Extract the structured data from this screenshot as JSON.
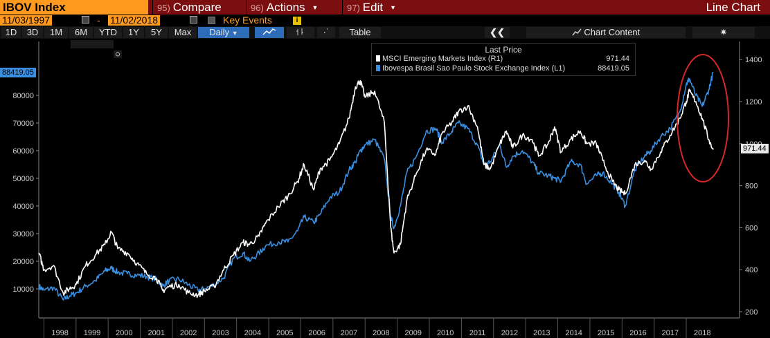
{
  "menu": {
    "ticker": "IBOV Index",
    "compare": {
      "num": "95)",
      "label": "Compare"
    },
    "actions": {
      "num": "96)",
      "label": "Actions"
    },
    "edit": {
      "num": "97)",
      "label": "Edit"
    },
    "chart_type": "Line Chart"
  },
  "dates": {
    "start": "11/03/1997",
    "end": "11/02/2018",
    "separator": "-",
    "key_events": "Key Events",
    "info": "i"
  },
  "toolbar": {
    "ranges": [
      "1D",
      "3D",
      "1M",
      "6M",
      "YTD",
      "1Y",
      "5Y",
      "Max"
    ],
    "frequency": "Daily",
    "table": "Table",
    "chart_content": "Chart Content"
  },
  "colors": {
    "accent": "#ff9a1e",
    "header": "#7b0e0e",
    "ibov": "#3a8fe0",
    "msci": "#ffffff",
    "highlight": "#d62828"
  },
  "chart_data": {
    "type": "line",
    "legend": {
      "header": "Last Price",
      "position": "top-center"
    },
    "x_ticks": [
      "1998",
      "1999",
      "2000",
      "2001",
      "2002",
      "2003",
      "2004",
      "2005",
      "2006",
      "2007",
      "2008",
      "2009",
      "2010",
      "2011",
      "2012",
      "2013",
      "2014",
      "2015",
      "2016",
      "2017",
      "2018"
    ],
    "left_axis": {
      "ticks": [
        10000,
        20000,
        30000,
        40000,
        50000,
        60000,
        70000,
        80000
      ],
      "range": [
        0,
        100000
      ]
    },
    "right_axis": {
      "ticks": [
        200,
        400,
        600,
        800,
        1000,
        1200,
        1400
      ],
      "range": [
        200,
        1450
      ]
    },
    "grid": false,
    "series": [
      {
        "name": "MSCI Emerging Markets Index (R1)",
        "last": "971.44",
        "axis": "right",
        "color": "#ffffff",
        "x": [
          1997.84,
          1998.0,
          1998.3,
          1998.6,
          1998.8,
          1999.0,
          1999.3,
          1999.6,
          1999.9,
          2000.1,
          2000.3,
          2000.6,
          2000.9,
          2001.2,
          2001.5,
          2001.7,
          2001.9,
          2002.2,
          2002.5,
          2002.8,
          2003.0,
          2003.3,
          2003.6,
          2003.9,
          2004.2,
          2004.4,
          2004.7,
          2004.9,
          2005.3,
          2005.6,
          2005.9,
          2006.1,
          2006.4,
          2006.6,
          2006.9,
          2007.2,
          2007.5,
          2007.7,
          2007.85,
          2008.0,
          2008.3,
          2008.6,
          2008.8,
          2008.9,
          2009.1,
          2009.3,
          2009.6,
          2009.9,
          2010.2,
          2010.4,
          2010.7,
          2010.9,
          2011.2,
          2011.5,
          2011.7,
          2011.9,
          2012.2,
          2012.4,
          2012.6,
          2012.9,
          2013.2,
          2013.4,
          2013.7,
          2013.9,
          2014.1,
          2014.4,
          2014.7,
          2014.9,
          2015.2,
          2015.4,
          2015.7,
          2015.9,
          2016.1,
          2016.4,
          2016.7,
          2016.9,
          2017.2,
          2017.5,
          2017.8,
          2018.0,
          2018.1,
          2018.3,
          2018.5,
          2018.7,
          2018.84
        ],
        "y": [
          480,
          400,
          420,
          290,
          310,
          330,
          420,
          470,
          520,
          580,
          500,
          480,
          430,
          380,
          360,
          300,
          320,
          330,
          290,
          280,
          300,
          320,
          400,
          470,
          530,
          520,
          560,
          620,
          700,
          750,
          820,
          900,
          780,
          880,
          920,
          1000,
          1120,
          1270,
          1300,
          1220,
          1250,
          1100,
          600,
          480,
          520,
          730,
          860,
          970,
          950,
          1050,
          1100,
          1150,
          1180,
          1080,
          900,
          880,
          1000,
          1060,
          980,
          1040,
          1020,
          940,
          1000,
          1080,
          960,
          1020,
          1060,
          1000,
          1000,
          920,
          820,
          780,
          760,
          900,
          920,
          880,
          960,
          1040,
          1120,
          1200,
          1250,
          1200,
          1120,
          1020,
          971.44
        ]
      },
      {
        "name": "Ibovespa Brasil Sao Paulo Stock Exchange Index (L1)",
        "last": "88419.05",
        "axis": "left",
        "color": "#3a8fe0",
        "x": [
          1997.84,
          1998.0,
          1998.3,
          1998.6,
          1998.8,
          1999.0,
          1999.3,
          1999.6,
          1999.9,
          2000.1,
          2000.3,
          2000.6,
          2000.9,
          2001.2,
          2001.5,
          2001.7,
          2001.9,
          2002.2,
          2002.5,
          2002.8,
          2003.0,
          2003.3,
          2003.6,
          2003.9,
          2004.2,
          2004.4,
          2004.7,
          2004.9,
          2005.3,
          2005.6,
          2005.9,
          2006.1,
          2006.4,
          2006.6,
          2006.9,
          2007.2,
          2007.5,
          2007.7,
          2007.85,
          2008.0,
          2008.3,
          2008.6,
          2008.8,
          2008.9,
          2009.1,
          2009.3,
          2009.6,
          2009.9,
          2010.2,
          2010.4,
          2010.7,
          2010.9,
          2011.2,
          2011.5,
          2011.7,
          2011.9,
          2012.2,
          2012.4,
          2012.6,
          2012.9,
          2013.2,
          2013.4,
          2013.7,
          2013.9,
          2014.1,
          2014.4,
          2014.7,
          2014.9,
          2015.2,
          2015.4,
          2015.7,
          2015.9,
          2016.1,
          2016.4,
          2016.7,
          2016.9,
          2017.2,
          2017.5,
          2017.8,
          2018.0,
          2018.1,
          2018.3,
          2018.5,
          2018.7,
          2018.84
        ],
        "y": [
          11000,
          9500,
          10500,
          6000,
          7500,
          8500,
          11000,
          13000,
          16500,
          17500,
          16000,
          15500,
          15000,
          14500,
          13500,
          11000,
          13000,
          13500,
          11500,
          9500,
          10000,
          11500,
          14000,
          21000,
          23000,
          20000,
          23000,
          25500,
          27000,
          27000,
          31000,
          36000,
          34000,
          37000,
          43000,
          45000,
          53000,
          56000,
          60000,
          62000,
          64000,
          57000,
          36000,
          32000,
          40000,
          52000,
          58000,
          67000,
          68000,
          63000,
          67000,
          70000,
          68000,
          62000,
          55000,
          56000,
          62000,
          54000,
          58000,
          60000,
          56000,
          52000,
          51000,
          50000,
          49000,
          56000,
          55000,
          48000,
          51000,
          52000,
          48000,
          45000,
          40000,
          53000,
          58000,
          60000,
          65000,
          68000,
          74000,
          84000,
          86000,
          80000,
          76000,
          82000,
          88419.05
        ]
      }
    ]
  }
}
